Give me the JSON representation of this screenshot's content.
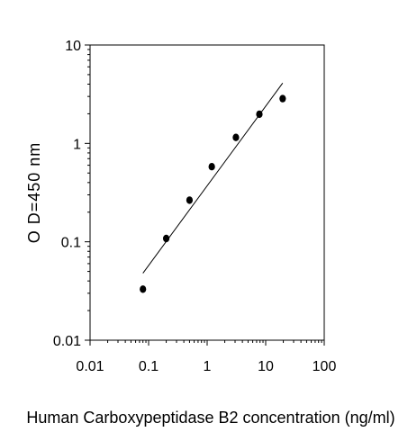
{
  "chart_data": {
    "type": "scatter",
    "title": "",
    "xlabel": "Human  Carboxypeptidase B2 concentration (ng/ml)",
    "ylabel": "O D=450 nm",
    "x_scale": "log",
    "y_scale": "log",
    "xlim": [
      0.01,
      100
    ],
    "ylim": [
      0.01,
      10
    ],
    "x_ticks": [
      "0.01",
      "0.1",
      "1",
      "10",
      "100"
    ],
    "y_ticks": [
      "0.01",
      "0.1",
      "1",
      "10"
    ],
    "grid": false,
    "legend": "none",
    "series": [
      {
        "kind": "points",
        "x": [
          0.08,
          0.2,
          0.5,
          1.2,
          3.1,
          7.8,
          19.5
        ],
        "y": [
          0.033,
          0.108,
          0.265,
          0.58,
          1.15,
          1.98,
          2.85
        ]
      },
      {
        "kind": "fit-line",
        "x": [
          0.08,
          19.5
        ],
        "y": [
          0.048,
          4.1
        ]
      }
    ]
  },
  "colors": {
    "points": "#000000",
    "line": "#000000",
    "axes": "#000000"
  }
}
